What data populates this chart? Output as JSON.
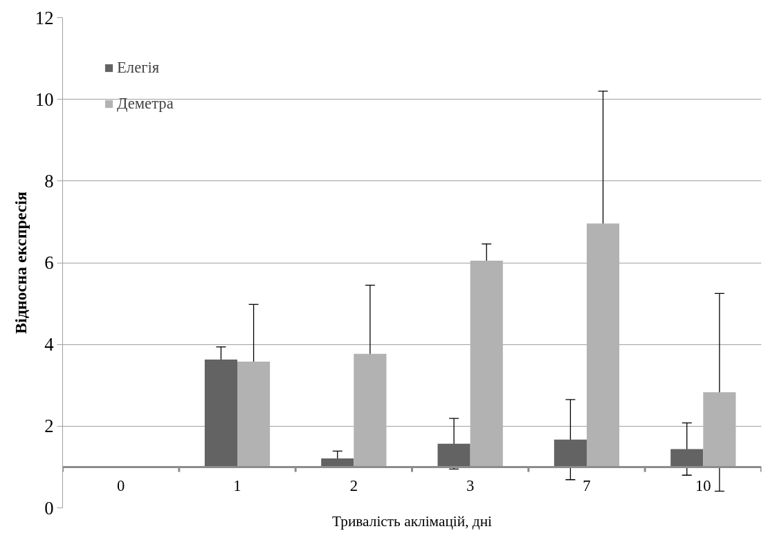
{
  "chart_data": {
    "type": "bar",
    "xlabel": "Тривалість аклімацій, дні",
    "ylabel": "Відносна експресія",
    "categories": [
      "0",
      "1",
      "2",
      "3",
      "7",
      "10"
    ],
    "series": [
      {
        "name": "Елегія",
        "color": "#636363",
        "base": [
          null,
          1,
          1,
          1,
          1,
          1
        ],
        "values": [
          null,
          2.63,
          0.21,
          0.57,
          0.67,
          0.44
        ],
        "errors": [
          null,
          0.31,
          0.18,
          0.62,
          0.98,
          0.64
        ]
      },
      {
        "name": "Деметра",
        "color": "#b2b2b2",
        "base": [
          null,
          1,
          1,
          1,
          1,
          1
        ],
        "values": [
          null,
          2.58,
          2.77,
          5.05,
          5.96,
          1.83
        ],
        "errors": [
          null,
          1.4,
          1.68,
          0.41,
          3.24,
          2.42
        ]
      }
    ],
    "ylim": [
      0,
      12
    ],
    "yticks": [
      0,
      2,
      4,
      6,
      8,
      10,
      12
    ],
    "grid": "y",
    "legend": "top left"
  }
}
